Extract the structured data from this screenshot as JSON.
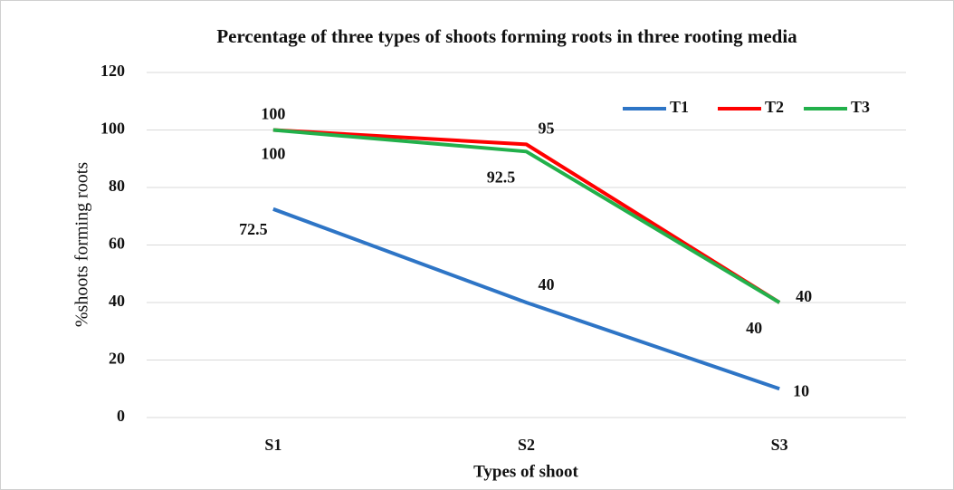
{
  "chart_data": {
    "type": "line",
    "title": "Percentage of three types of shoots forming roots in three rooting media",
    "x_label": "Types of shoot",
    "y_label": "%shoots forming roots",
    "categories": [
      "S1",
      "S2",
      "S3"
    ],
    "series": [
      {
        "name": "T1",
        "color": "#2e75c6",
        "values": [
          72.5,
          40,
          10
        ]
      },
      {
        "name": "T2",
        "color": "#ff0000",
        "values": [
          100,
          95,
          40
        ]
      },
      {
        "name": "T3",
        "color": "#22b04b",
        "values": [
          100,
          92.5,
          40
        ]
      }
    ],
    "ylim": [
      0,
      120
    ],
    "yticks": [
      0,
      20,
      40,
      60,
      80,
      100,
      120
    ],
    "grid": true,
    "legend": "top-right"
  }
}
